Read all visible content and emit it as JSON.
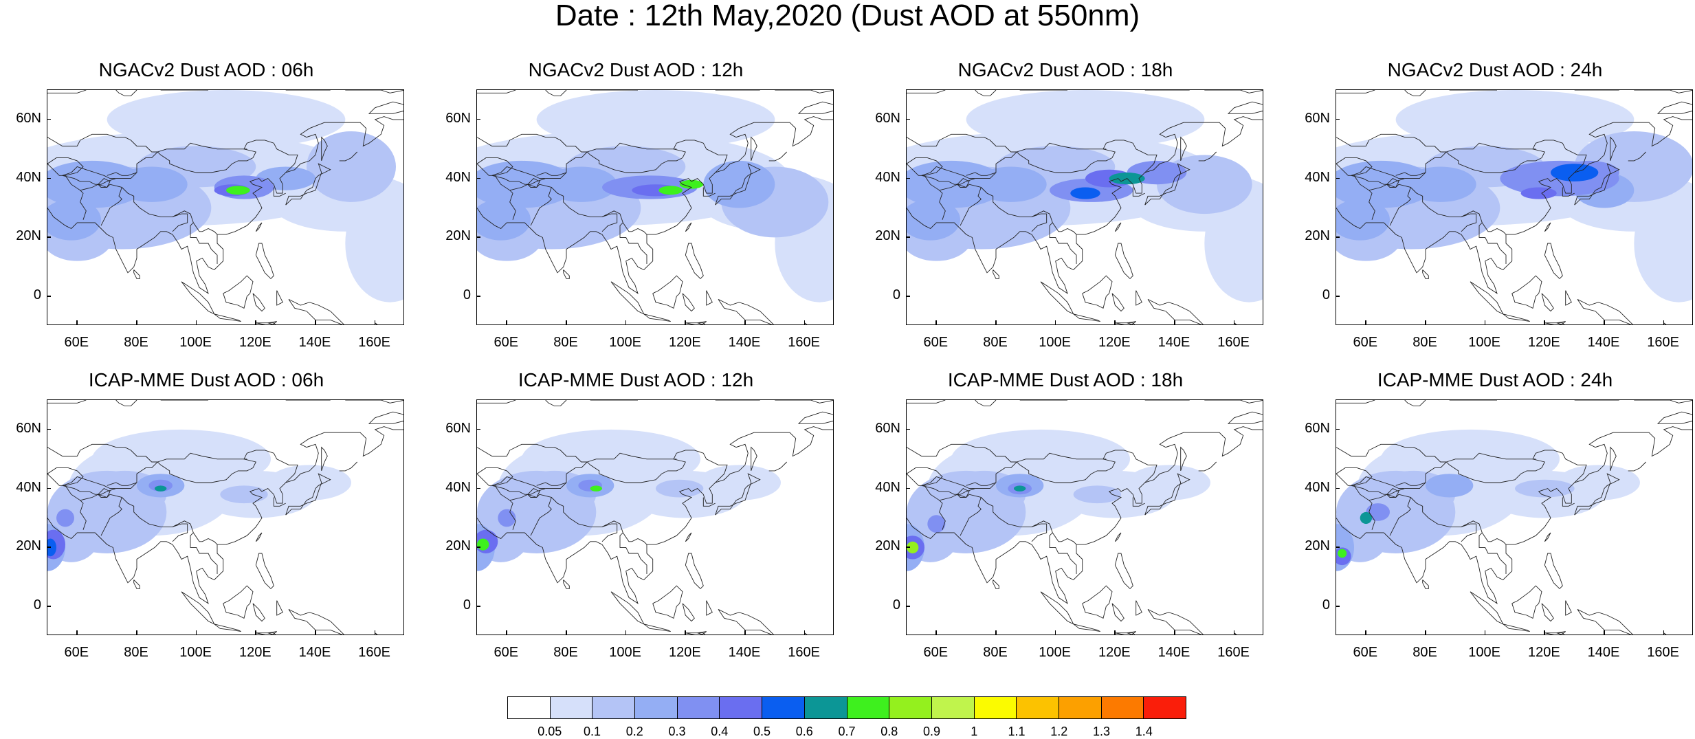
{
  "title": "Date : 12th May,2020 (Dust AOD at 550nm)",
  "panels": [
    {
      "title": "NGACv2 Dust AOD : 06h"
    },
    {
      "title": "NGACv2 Dust AOD : 12h"
    },
    {
      "title": "NGACv2 Dust AOD : 18h"
    },
    {
      "title": "NGACv2 Dust AOD : 24h"
    },
    {
      "title": "ICAP-MME Dust AOD : 06h"
    },
    {
      "title": "ICAP-MME Dust AOD : 12h"
    },
    {
      "title": "ICAP-MME Dust AOD : 18h"
    },
    {
      "title": "ICAP-MME Dust AOD : 24h"
    }
  ],
  "lat_ticks": [
    "60N",
    "40N",
    "20N",
    "0"
  ],
  "lon_ticks": [
    "60E",
    "80E",
    "100E",
    "120E",
    "140E",
    "160E"
  ],
  "colorbar": {
    "labels": [
      "0.05",
      "0.1",
      "0.2",
      "0.3",
      "0.4",
      "0.5",
      "0.6",
      "0.7",
      "0.8",
      "0.9",
      "1",
      "1.1",
      "1.2",
      "1.3",
      "1.4"
    ],
    "colors": [
      "#ffffff",
      "#d6e0fa",
      "#b4c4f6",
      "#94aef4",
      "#8090f2",
      "#6a6ef0",
      "#0a5ef0",
      "#0c9696",
      "#3ef01e",
      "#94f01e",
      "#c0f44c",
      "#fbfb00",
      "#fcc200",
      "#fca000",
      "#fc7a00",
      "#fa1e0a"
    ]
  }
}
